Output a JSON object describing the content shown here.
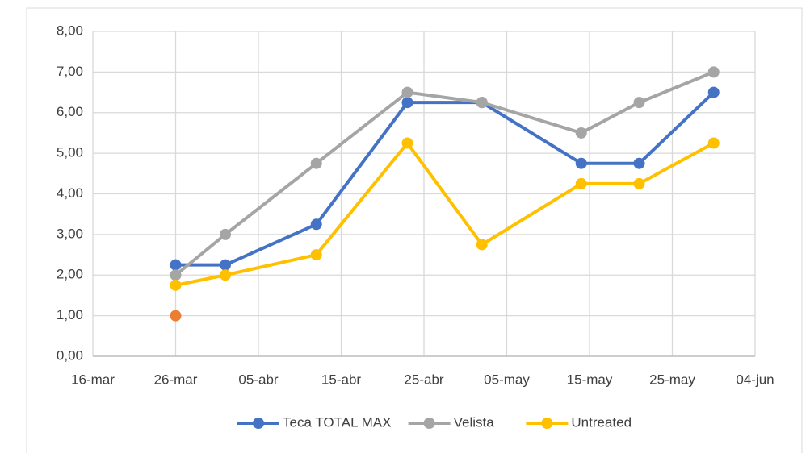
{
  "chart_data": {
    "type": "line",
    "x": [
      85,
      91,
      102,
      113,
      122,
      134,
      141,
      150
    ],
    "xlim": [
      75,
      155
    ],
    "xticks": [
      {
        "value": 75,
        "label": "16-mar"
      },
      {
        "value": 85,
        "label": "26-mar"
      },
      {
        "value": 95,
        "label": "05-abr"
      },
      {
        "value": 105,
        "label": "15-abr"
      },
      {
        "value": 115,
        "label": "25-abr"
      },
      {
        "value": 125,
        "label": "05-may"
      },
      {
        "value": 135,
        "label": "15-may"
      },
      {
        "value": 145,
        "label": "25-may"
      },
      {
        "value": 155,
        "label": "04-jun"
      }
    ],
    "ylim": [
      0,
      8
    ],
    "yticks": [
      {
        "value": 0,
        "label": "0,00"
      },
      {
        "value": 1,
        "label": "1,00"
      },
      {
        "value": 2,
        "label": "2,00"
      },
      {
        "value": 3,
        "label": "3,00"
      },
      {
        "value": 4,
        "label": "4,00"
      },
      {
        "value": 5,
        "label": "5,00"
      },
      {
        "value": 6,
        "label": "6,00"
      },
      {
        "value": 7,
        "label": "7,00"
      },
      {
        "value": 8,
        "label": "8,00"
      }
    ],
    "grid": true,
    "legend": "bottom",
    "series": [
      {
        "name": "Teca TOTAL MAX",
        "color": "#4472c4",
        "values": [
          2.25,
          2.25,
          3.25,
          6.25,
          6.25,
          4.75,
          4.75,
          6.5
        ]
      },
      {
        "name": "Velista",
        "color": "#a5a5a5",
        "values": [
          2,
          3,
          4.75,
          6.5,
          6.25,
          5.5,
          6.25,
          7
        ]
      },
      {
        "name": "Untreated",
        "color": "#ffc000",
        "values": [
          1.75,
          2,
          2.5,
          5.25,
          2.75,
          4.25,
          4.25,
          5.25
        ]
      },
      {
        "color": "#ed7d31",
        "values": [
          1,
          null,
          null,
          null,
          null,
          null,
          null,
          null
        ]
      }
    ]
  }
}
